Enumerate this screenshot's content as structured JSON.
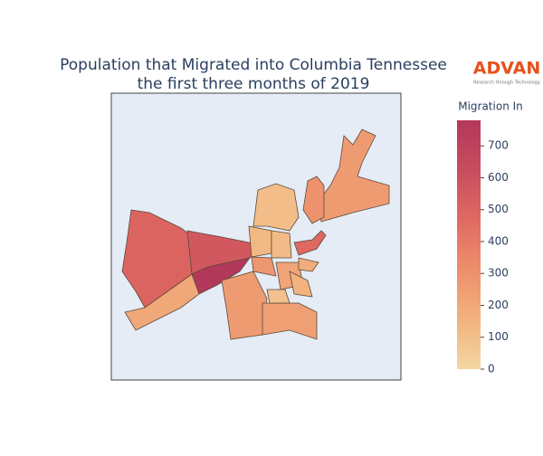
{
  "chart_data": {
    "type": "choropleth",
    "title": [
      "Population that Migrated into Columbia Tennessee",
      "the first three months of 2019"
    ],
    "colorbar_title": "Migration In",
    "zlim": [
      0,
      780
    ],
    "zticks": [
      0,
      100,
      200,
      300,
      400,
      500,
      600,
      700
    ],
    "colorscale": [
      "#f3d6a2",
      "#f2b27e",
      "#ed8f6c",
      "#e06a62",
      "#c94c5e",
      "#b3385b"
    ],
    "background": "#e5ecf6",
    "values": [
      500,
      560,
      780,
      200,
      260,
      240,
      110,
      260,
      300,
      480,
      130,
      120,
      280,
      220,
      90,
      180,
      150
    ]
  },
  "logo": {
    "name": "ADVAN",
    "tagline": "Research through Technology"
  }
}
